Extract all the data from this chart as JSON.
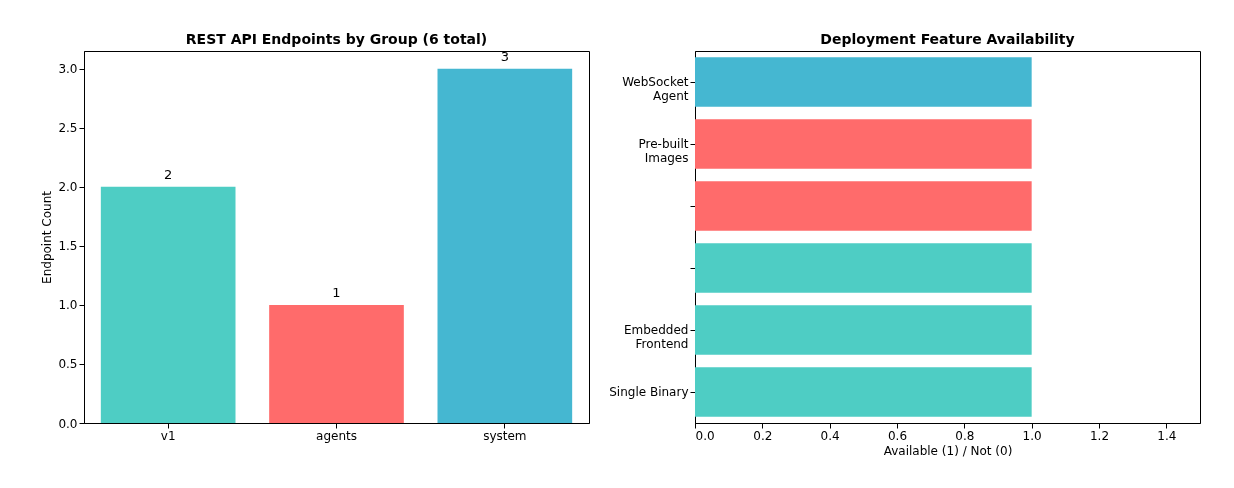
{
  "chart_data": [
    {
      "type": "bar",
      "title": "REST API Endpoints by Group (6 total)",
      "ylabel": "Endpoint Count",
      "categories": [
        "v1",
        "agents",
        "system"
      ],
      "values": [
        2,
        1,
        3
      ],
      "colors": [
        "#4ecdc4",
        "#ff6b6b",
        "#45b7d1"
      ],
      "ylim": [
        0,
        3.15
      ],
      "yticks": [
        {
          "value": 0,
          "label": "0.0"
        },
        {
          "value": 0.5,
          "label": "0.5"
        },
        {
          "value": 1,
          "label": "1.0"
        },
        {
          "value": 1.5,
          "label": "1.5"
        },
        {
          "value": 2,
          "label": "2.0"
        },
        {
          "value": 2.5,
          "label": "2.5"
        },
        {
          "value": 3,
          "label": "3.0"
        }
      ],
      "data_labels": true,
      "grid": false,
      "legend": false
    },
    {
      "type": "bar",
      "orientation": "horizontal",
      "title": "Deployment Feature Availability",
      "xlabel": "Available (1) / Not (0)",
      "categories": [
        "WebSocket\nAgent",
        "Pre-built\nImages",
        null,
        null,
        "Embedded\nFrontend",
        "Single Binary"
      ],
      "values": [
        1,
        1,
        1,
        1,
        1,
        1
      ],
      "colors": [
        "#45b7d1",
        "#ff6b6b",
        "#ff6b6b",
        "#4ecdc4",
        "#4ecdc4",
        "#4ecdc4"
      ],
      "xlim": [
        0,
        1.5
      ],
      "xticks": [
        {
          "value": 0,
          "label": "0.0"
        },
        {
          "value": 0.2,
          "label": "0.2"
        },
        {
          "value": 0.4,
          "label": "0.4"
        },
        {
          "value": 0.6,
          "label": "0.6"
        },
        {
          "value": 0.8,
          "label": "0.8"
        },
        {
          "value": 1,
          "label": "1.0"
        },
        {
          "value": 1.2,
          "label": "1.2"
        },
        {
          "value": 1.4,
          "label": "1.4"
        }
      ],
      "grid": false,
      "legend": false
    }
  ]
}
